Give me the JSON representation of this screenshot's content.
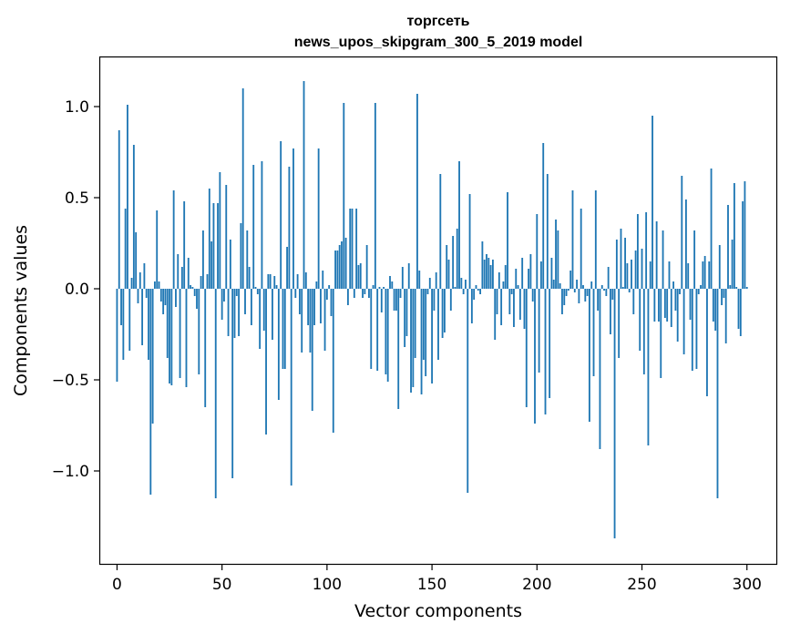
{
  "chart_data": {
    "type": "bar",
    "title": "торгсеть",
    "subtitle": "news_upos_skipgram_300_5_2019 model",
    "xlabel": "Vector components",
    "ylabel": "Components values",
    "xlim": [
      -8,
      314
    ],
    "ylim": [
      -1.51,
      1.27
    ],
    "xticks": [
      0,
      50,
      100,
      150,
      200,
      250,
      300
    ],
    "xtick_labels": [
      "0",
      "50",
      "100",
      "150",
      "200",
      "250",
      "300"
    ],
    "yticks": [
      -1.0,
      -0.5,
      0.0,
      0.5,
      1.0
    ],
    "ytick_labels": [
      "−1.0",
      "−0.5",
      "0.0",
      "0.5",
      "1.0"
    ],
    "grid": false,
    "bar_color": "#1f77b4",
    "values": [
      -0.51,
      0.87,
      -0.2,
      -0.39,
      0.44,
      1.01,
      -0.34,
      0.06,
      0.79,
      0.31,
      -0.08,
      0.09,
      -0.31,
      0.14,
      -0.05,
      -0.39,
      -1.13,
      -0.74,
      0.04,
      0.43,
      0.04,
      -0.07,
      -0.14,
      -0.09,
      -0.38,
      -0.52,
      -0.53,
      0.54,
      -0.1,
      0.19,
      -0.49,
      0.12,
      0.48,
      -0.54,
      0.17,
      0.02,
      0.01,
      -0.04,
      -0.11,
      -0.47,
      0.07,
      0.32,
      -0.65,
      0.08,
      0.55,
      0.26,
      0.47,
      -1.15,
      0.47,
      0.64,
      -0.17,
      -0.07,
      0.57,
      -0.26,
      0.27,
      -1.04,
      -0.27,
      -0.04,
      -0.26,
      0.36,
      1.1,
      -0.14,
      0.32,
      0.12,
      -0.2,
      0.68,
      0.01,
      -0.03,
      -0.33,
      0.7,
      -0.23,
      -0.8,
      0.08,
      0.08,
      -0.28,
      0.07,
      0.02,
      -0.61,
      0.81,
      -0.44,
      -0.44,
      0.23,
      0.67,
      -1.08,
      0.77,
      -0.05,
      0.08,
      -0.14,
      -0.35,
      1.14,
      0.09,
      -0.2,
      -0.35,
      -0.67,
      -0.2,
      0.04,
      0.77,
      -0.19,
      0.1,
      -0.34,
      -0.06,
      0.02,
      -0.15,
      -0.79,
      0.21,
      0.21,
      0.24,
      0.26,
      1.02,
      0.28,
      -0.09,
      0.44,
      0.44,
      -0.05,
      0.44,
      0.13,
      0.14,
      -0.05,
      -0.03,
      0.24,
      -0.05,
      -0.44,
      0.02,
      1.02,
      -0.45,
      0.01,
      -0.13,
      0.01,
      -0.47,
      -0.51,
      0.07,
      0.04,
      -0.12,
      -0.12,
      -0.66,
      -0.05,
      0.12,
      -0.32,
      -0.26,
      0.14,
      -0.57,
      -0.54,
      -0.38,
      1.07,
      0.1,
      -0.58,
      -0.39,
      -0.48,
      -0.03,
      0.06,
      -0.52,
      -0.12,
      0.09,
      -0.39,
      0.63,
      -0.27,
      -0.24,
      0.24,
      0.16,
      -0.12,
      0.29,
      0.01,
      0.33,
      0.7,
      0.06,
      -0.03,
      0.05,
      -1.12,
      0.52,
      -0.19,
      -0.06,
      0.02,
      -0.01,
      -0.03,
      0.26,
      0.16,
      0.19,
      0.17,
      0.13,
      0.16,
      -0.28,
      -0.14,
      0.09,
      -0.2,
      0.04,
      0.13,
      0.53,
      -0.14,
      -0.03,
      -0.21,
      0.11,
      0.02,
      -0.17,
      0.17,
      -0.22,
      -0.65,
      0.11,
      0.19,
      -0.07,
      -0.74,
      0.41,
      -0.46,
      0.15,
      0.8,
      -0.69,
      0.63,
      -0.6,
      0.17,
      0.05,
      0.38,
      0.32,
      0.03,
      -0.14,
      -0.09,
      -0.04,
      -0.01,
      0.1,
      0.54,
      -0.02,
      0.05,
      -0.08,
      0.44,
      0.02,
      -0.07,
      -0.04,
      -0.73,
      0.04,
      -0.48,
      0.54,
      -0.12,
      -0.88,
      0.02,
      -0.01,
      -0.04,
      0.12,
      -0.25,
      -0.06,
      -1.37,
      0.27,
      -0.38,
      0.33,
      0.01,
      0.28,
      0.14,
      -0.02,
      0.16,
      -0.14,
      0.21,
      0.41,
      -0.34,
      0.22,
      -0.47,
      0.42,
      -0.86,
      0.15,
      0.95,
      -0.18,
      0.37,
      -0.18,
      -0.49,
      0.32,
      -0.16,
      -0.18,
      0.15,
      -0.21,
      0.04,
      -0.12,
      -0.29,
      -0.03,
      0.62,
      -0.36,
      0.49,
      0.14,
      -0.17,
      -0.45,
      0.32,
      -0.44,
      -0.03,
      0.02,
      0.15,
      0.18,
      -0.59,
      0.15,
      0.66,
      -0.18,
      -0.23,
      -1.15,
      0.24,
      -0.09,
      -0.05,
      -0.3,
      0.46,
      0.02,
      0.27,
      0.58,
      0.01,
      -0.22,
      -0.26,
      0.48,
      0.59,
      0.01
    ]
  }
}
